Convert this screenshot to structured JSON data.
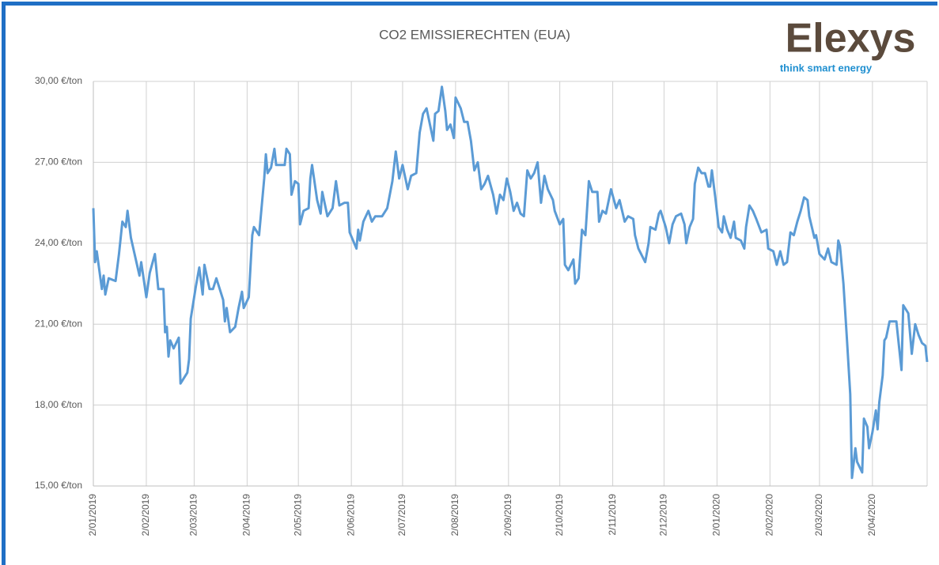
{
  "chart_data": {
    "type": "line",
    "title": "CO2 EMISSIERECHTEN (EUA)",
    "x": [
      "2019-01-02",
      "2019-01-03",
      "2019-01-04",
      "2019-01-07",
      "2019-01-08",
      "2019-01-09",
      "2019-01-11",
      "2019-01-15",
      "2019-01-17",
      "2019-01-19",
      "2019-01-21",
      "2019-01-22",
      "2019-01-24",
      "2019-01-29",
      "2019-01-30",
      "2019-02-02",
      "2019-02-04",
      "2019-02-07",
      "2019-02-09",
      "2019-02-12",
      "2019-02-13",
      "2019-02-14",
      "2019-02-15",
      "2019-02-16",
      "2019-02-18",
      "2019-02-21",
      "2019-02-22",
      "2019-02-26",
      "2019-02-27",
      "2019-02-28",
      "2019-03-03",
      "2019-03-05",
      "2019-03-07",
      "2019-03-08",
      "2019-03-11",
      "2019-03-13",
      "2019-03-15",
      "2019-03-19",
      "2019-03-20",
      "2019-03-21",
      "2019-03-23",
      "2019-03-26",
      "2019-03-28",
      "2019-03-30",
      "2019-03-31",
      "2019-04-03",
      "2019-04-05",
      "2019-04-06",
      "2019-04-09",
      "2019-04-12",
      "2019-04-13",
      "2019-04-14",
      "2019-04-16",
      "2019-04-18",
      "2019-04-19",
      "2019-04-24",
      "2019-04-25",
      "2019-04-27",
      "2019-04-28",
      "2019-04-30",
      "2019-05-02",
      "2019-05-03",
      "2019-05-05",
      "2019-05-08",
      "2019-05-09",
      "2019-05-10",
      "2019-05-13",
      "2019-05-15",
      "2019-05-16",
      "2019-05-19",
      "2019-05-22",
      "2019-05-24",
      "2019-05-26",
      "2019-05-29",
      "2019-05-31",
      "2019-06-01",
      "2019-06-05",
      "2019-06-06",
      "2019-06-07",
      "2019-06-09",
      "2019-06-12",
      "2019-06-14",
      "2019-06-16",
      "2019-06-20",
      "2019-06-23",
      "2019-06-26",
      "2019-06-28",
      "2019-06-30",
      "2019-07-02",
      "2019-07-05",
      "2019-07-07",
      "2019-07-10",
      "2019-07-12",
      "2019-07-14",
      "2019-07-16",
      "2019-07-18",
      "2019-07-20",
      "2019-07-21",
      "2019-07-23",
      "2019-07-25",
      "2019-07-27",
      "2019-07-28",
      "2019-07-30",
      "2019-08-01",
      "2019-08-02",
      "2019-08-05",
      "2019-08-07",
      "2019-08-09",
      "2019-08-11",
      "2019-08-13",
      "2019-08-15",
      "2019-08-17",
      "2019-08-19",
      "2019-08-21",
      "2019-08-24",
      "2019-08-26",
      "2019-08-28",
      "2019-08-30",
      "2019-09-01",
      "2019-09-03",
      "2019-09-05",
      "2019-09-07",
      "2019-09-09",
      "2019-09-11",
      "2019-09-13",
      "2019-09-15",
      "2019-09-17",
      "2019-09-19",
      "2019-09-21",
      "2019-09-23",
      "2019-09-25",
      "2019-09-28",
      "2019-09-29",
      "2019-10-02",
      "2019-10-04",
      "2019-10-05",
      "2019-10-07",
      "2019-10-10",
      "2019-10-11",
      "2019-10-13",
      "2019-10-15",
      "2019-10-17",
      "2019-10-19",
      "2019-10-21",
      "2019-10-24",
      "2019-10-25",
      "2019-10-27",
      "2019-10-29",
      "2019-11-01",
      "2019-11-04",
      "2019-11-06",
      "2019-11-09",
      "2019-11-11",
      "2019-11-14",
      "2019-11-15",
      "2019-11-17",
      "2019-11-21",
      "2019-11-23",
      "2019-11-24",
      "2019-11-27",
      "2019-11-29",
      "2019-11-30",
      "2019-12-03",
      "2019-12-05",
      "2019-12-07",
      "2019-12-09",
      "2019-12-12",
      "2019-12-14",
      "2019-12-15",
      "2019-12-17",
      "2019-12-19",
      "2019-12-20",
      "2019-12-22",
      "2019-12-24",
      "2019-12-26",
      "2019-12-28",
      "2019-12-29",
      "2019-12-30",
      "2020-01-01",
      "2020-01-03",
      "2020-01-05",
      "2020-01-06",
      "2020-01-08",
      "2020-01-10",
      "2020-01-12",
      "2020-01-13",
      "2020-01-16",
      "2020-01-18",
      "2020-01-19",
      "2020-01-21",
      "2020-01-23",
      "2020-01-25",
      "2020-01-28",
      "2020-01-31",
      "2020-02-01",
      "2020-02-04",
      "2020-02-06",
      "2020-02-08",
      "2020-02-10",
      "2020-02-12",
      "2020-02-14",
      "2020-02-16",
      "2020-02-18",
      "2020-02-20",
      "2020-02-22",
      "2020-02-24",
      "2020-02-25",
      "2020-02-28",
      "2020-02-29",
      "2020-03-02",
      "2020-03-05",
      "2020-03-07",
      "2020-03-09",
      "2020-03-12",
      "2020-03-13",
      "2020-03-14",
      "2020-03-16",
      "2020-03-18",
      "2020-03-20",
      "2020-03-21",
      "2020-03-23",
      "2020-03-24",
      "2020-03-27",
      "2020-03-28",
      "2020-03-30",
      "2020-03-31",
      "2020-04-02",
      "2020-04-04",
      "2020-04-05",
      "2020-04-06",
      "2020-04-08",
      "2020-04-09",
      "2020-04-10",
      "2020-04-12",
      "2020-04-14",
      "2020-04-16",
      "2020-04-19",
      "2020-04-20",
      "2020-04-23",
      "2020-04-25",
      "2020-04-27",
      "2020-04-29",
      "2020-05-01",
      "2020-05-03",
      "2020-05-04"
    ],
    "series": [
      {
        "color": "#5b9bd5",
        "values": [
          25.3,
          23.3,
          23.7,
          22.3,
          22.8,
          22.1,
          22.7,
          22.6,
          23.6,
          24.8,
          24.6,
          25.2,
          24.2,
          22.8,
          23.3,
          22.0,
          22.9,
          23.6,
          22.3,
          22.3,
          20.7,
          20.9,
          19.8,
          20.4,
          20.1,
          20.5,
          18.8,
          19.2,
          19.7,
          21.2,
          22.4,
          23.1,
          22.1,
          23.2,
          22.3,
          22.3,
          22.7,
          21.9,
          21.1,
          21.6,
          20.7,
          20.9,
          21.6,
          22.2,
          21.6,
          22.0,
          24.3,
          24.6,
          24.3,
          26.4,
          27.3,
          26.6,
          26.8,
          27.5,
          26.9,
          26.9,
          27.5,
          27.3,
          25.8,
          26.3,
          26.2,
          24.7,
          25.2,
          25.3,
          26.4,
          26.9,
          25.6,
          25.1,
          25.9,
          25.0,
          25.3,
          26.3,
          25.4,
          25.5,
          25.5,
          24.4,
          23.8,
          24.5,
          24.1,
          24.8,
          25.2,
          24.8,
          25.0,
          25.0,
          25.3,
          26.3,
          27.4,
          26.4,
          26.9,
          26.0,
          26.5,
          26.6,
          28.1,
          28.8,
          29.0,
          28.4,
          27.8,
          28.8,
          28.9,
          29.8,
          28.9,
          28.2,
          28.4,
          27.9,
          29.4,
          29.0,
          28.5,
          28.5,
          27.8,
          26.7,
          27.0,
          26.0,
          26.2,
          26.5,
          25.8,
          25.1,
          25.8,
          25.6,
          26.4,
          25.9,
          25.2,
          25.5,
          25.1,
          25.0,
          26.7,
          26.4,
          26.6,
          27.0,
          25.5,
          26.5,
          26.0,
          25.6,
          25.2,
          24.7,
          24.9,
          23.2,
          23.0,
          23.4,
          22.5,
          22.7,
          24.5,
          24.3,
          26.3,
          25.9,
          25.9,
          24.8,
          25.2,
          25.1,
          26.0,
          25.3,
          25.6,
          24.8,
          25.0,
          24.9,
          24.3,
          23.8,
          23.3,
          24.0,
          24.6,
          24.5,
          25.1,
          25.2,
          24.6,
          24.0,
          24.7,
          25.0,
          25.1,
          24.7,
          24.0,
          24.6,
          24.9,
          26.2,
          26.8,
          26.6,
          26.6,
          26.1,
          26.1,
          26.7,
          25.7,
          24.6,
          24.4,
          25.0,
          24.5,
          24.2,
          24.8,
          24.2,
          24.1,
          23.8,
          24.6,
          25.4,
          25.2,
          24.9,
          24.4,
          24.5,
          23.8,
          23.7,
          23.2,
          23.7,
          23.2,
          23.3,
          24.4,
          24.3,
          24.8,
          25.2,
          25.7,
          25.6,
          25.0,
          24.2,
          24.3,
          23.6,
          23.4,
          23.8,
          23.3,
          23.2,
          24.1,
          23.9,
          22.5,
          20.5,
          18.4,
          15.3,
          16.4,
          15.9,
          15.5,
          17.5,
          17.2,
          16.4,
          17.0,
          17.8,
          17.1,
          18.1,
          19.1,
          20.4,
          20.5,
          21.1,
          21.1,
          21.1,
          19.3,
          21.7,
          21.4,
          19.9,
          21.0,
          20.6,
          20.3,
          20.2,
          19.6
        ]
      }
    ],
    "xlim": [
      "2019-01-02",
      "2020-05-04"
    ],
    "xticks": [
      {
        "value": "2019-01-02",
        "label": "2/01/2019"
      },
      {
        "value": "2019-02-02",
        "label": "2/02/2019"
      },
      {
        "value": "2019-03-02",
        "label": "2/03/2019"
      },
      {
        "value": "2019-04-02",
        "label": "2/04/2019"
      },
      {
        "value": "2019-05-02",
        "label": "2/05/2019"
      },
      {
        "value": "2019-06-02",
        "label": "2/06/2019"
      },
      {
        "value": "2019-07-02",
        "label": "2/07/2019"
      },
      {
        "value": "2019-08-02",
        "label": "2/08/2019"
      },
      {
        "value": "2019-09-02",
        "label": "2/09/2019"
      },
      {
        "value": "2019-10-02",
        "label": "2/10/2019"
      },
      {
        "value": "2019-11-02",
        "label": "2/11/2019"
      },
      {
        "value": "2019-12-02",
        "label": "2/12/2019"
      },
      {
        "value": "2020-01-02",
        "label": "2/01/2020"
      },
      {
        "value": "2020-02-02",
        "label": "2/02/2020"
      },
      {
        "value": "2020-03-02",
        "label": "2/03/2020"
      },
      {
        "value": "2020-04-02",
        "label": "2/04/2020"
      }
    ],
    "ylim": [
      15,
      30
    ],
    "yticks": [
      {
        "value": 15,
        "label": "15,00 €/ton"
      },
      {
        "value": 18,
        "label": "18,00 €/ton"
      },
      {
        "value": 21,
        "label": "21,00 €/ton"
      },
      {
        "value": 24,
        "label": "24,00 €/ton"
      },
      {
        "value": 27,
        "label": "27,00 €/ton"
      },
      {
        "value": 30,
        "label": "30,00 €/ton"
      }
    ],
    "grid": true
  },
  "logo": {
    "name": "Elexys",
    "tagline": "think smart energy"
  }
}
